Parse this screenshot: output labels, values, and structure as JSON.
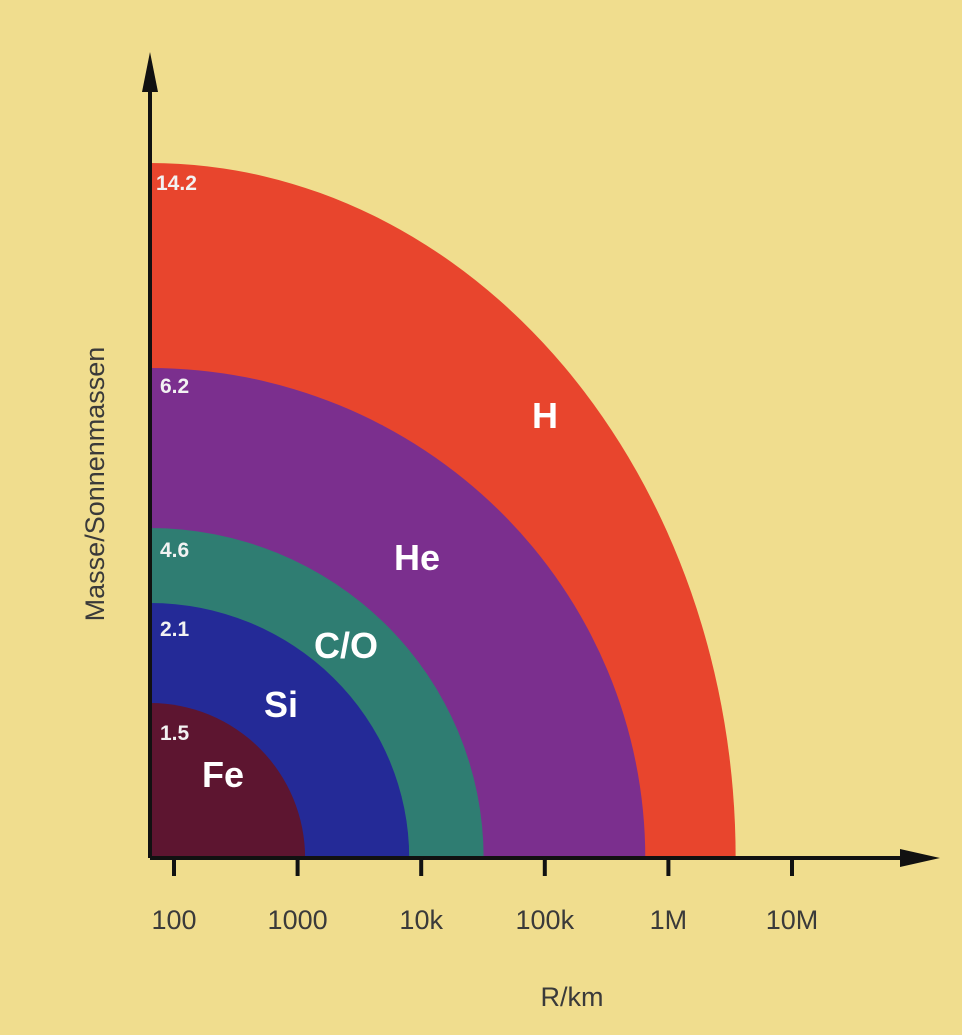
{
  "chart_data": {
    "type": "area",
    "xlabel": "R/km",
    "ylabel": "Masse/Sonnenmassen",
    "x_scale": "log",
    "x_ticks": [
      100,
      1000,
      10000,
      100000,
      1000000,
      10000000
    ],
    "x_tick_labels": [
      "100",
      "1000",
      "10k",
      "100k",
      "1M",
      "10M"
    ],
    "layers": [
      {
        "name": "H",
        "outer_radius_km": 3500000,
        "outer_mass": "14.2",
        "color": "#e8452d"
      },
      {
        "name": "He",
        "outer_radius_km": 650000,
        "outer_mass": "6.2",
        "color": "#7b2f8e"
      },
      {
        "name": "C/O",
        "outer_radius_km": 32000,
        "outer_mass": "4.6",
        "color": "#2f7d72"
      },
      {
        "name": "Si",
        "outer_radius_km": 8000,
        "outer_mass": "2.1",
        "color": "#242a97"
      },
      {
        "name": "Fe",
        "outer_radius_km": 1150,
        "outer_mass": "1.5",
        "color": "#5d1530"
      }
    ]
  },
  "colors": {
    "background": "#f0dd8e",
    "axis": "#111111",
    "text": "#3a3a3a"
  }
}
